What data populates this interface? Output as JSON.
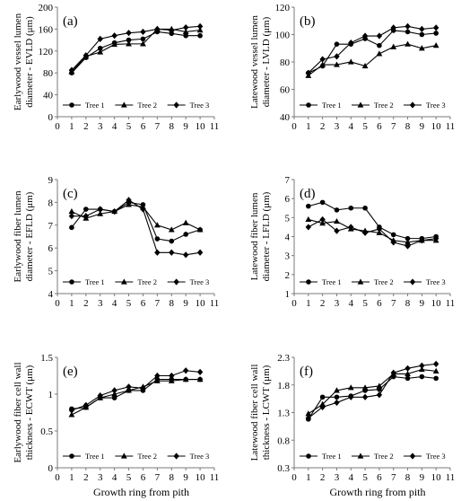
{
  "chart_data": [
    {
      "type": "line",
      "panel_label": "(a)",
      "ylabel_lines": [
        "Earlywood vessel lumen",
        "diameter - EVLD (μm)"
      ],
      "x": [
        1,
        2,
        3,
        4,
        5,
        6,
        7,
        8,
        9,
        10
      ],
      "xlim": [
        0,
        11
      ],
      "ylim": [
        0,
        200
      ],
      "yticks": [
        0,
        40,
        80,
        120,
        160,
        200
      ],
      "series": [
        {
          "name": "Tree 1",
          "marker": "circle",
          "values": [
            80,
            108,
            125,
            135,
            140,
            142,
            155,
            152,
            148,
            148
          ]
        },
        {
          "name": "Tree 2",
          "marker": "triangle",
          "values": [
            82,
            110,
            118,
            132,
            133,
            133,
            160,
            160,
            155,
            158
          ]
        },
        {
          "name": "Tree 3",
          "marker": "diamond",
          "values": [
            85,
            112,
            142,
            148,
            153,
            155,
            160,
            158,
            163,
            165
          ]
        }
      ]
    },
    {
      "type": "line",
      "panel_label": "(b)",
      "ylabel_lines": [
        "Latewood vessel lumen",
        "diameter - LVLD (μm)"
      ],
      "x": [
        1,
        2,
        3,
        4,
        5,
        6,
        7,
        8,
        9,
        10
      ],
      "xlim": [
        0,
        11
      ],
      "ylim": [
        40,
        120
      ],
      "yticks": [
        40,
        60,
        80,
        100,
        120
      ],
      "series": [
        {
          "name": "Tree 1",
          "marker": "circle",
          "values": [
            72,
            77,
            93,
            93,
            97,
            92,
            103,
            102,
            100,
            101
          ]
        },
        {
          "name": "Tree 2",
          "marker": "triangle",
          "values": [
            70,
            78,
            78,
            80,
            77,
            86,
            91,
            93,
            90,
            92
          ]
        },
        {
          "name": "Tree 3",
          "marker": "diamond",
          "values": [
            72,
            82,
            84,
            94,
            99,
            99,
            105,
            106,
            104,
            105
          ]
        }
      ]
    },
    {
      "type": "line",
      "panel_label": "(c)",
      "ylabel_lines": [
        "Earlywood fiber lumen",
        "diameter - EFLD (μm)"
      ],
      "x": [
        1,
        2,
        3,
        4,
        5,
        6,
        7,
        8,
        9,
        10
      ],
      "xlim": [
        0,
        11
      ],
      "ylim": [
        4,
        9
      ],
      "yticks": [
        4,
        5,
        6,
        7,
        8,
        9
      ],
      "series": [
        {
          "name": "Tree 1",
          "marker": "circle",
          "values": [
            6.9,
            7.7,
            7.7,
            7.6,
            8.0,
            7.9,
            6.4,
            6.3,
            6.6,
            6.8
          ]
        },
        {
          "name": "Tree 2",
          "marker": "triangle",
          "values": [
            7.6,
            7.3,
            7.5,
            7.6,
            7.9,
            7.8,
            7.0,
            6.8,
            7.1,
            6.8
          ]
        },
        {
          "name": "Tree 3",
          "marker": "diamond",
          "values": [
            7.4,
            7.4,
            7.7,
            7.6,
            8.1,
            7.7,
            5.8,
            5.8,
            5.7,
            5.8
          ]
        }
      ]
    },
    {
      "type": "line",
      "panel_label": "(d)",
      "ylabel_lines": [
        "Latewood fiber lumen",
        "diameter - LFLD (μm)"
      ],
      "x": [
        1,
        2,
        3,
        4,
        5,
        6,
        7,
        8,
        9,
        10
      ],
      "xlim": [
        0,
        11
      ],
      "ylim": [
        1,
        7
      ],
      "yticks": [
        1,
        2,
        3,
        4,
        5,
        6,
        7
      ],
      "series": [
        {
          "name": "Tree 1",
          "marker": "circle",
          "values": [
            5.6,
            5.8,
            5.4,
            5.5,
            5.5,
            4.5,
            4.1,
            3.9,
            3.9,
            4.0
          ]
        },
        {
          "name": "Tree 2",
          "marker": "triangle",
          "values": [
            4.9,
            4.7,
            4.8,
            4.4,
            4.3,
            4.2,
            3.8,
            3.7,
            3.8,
            3.8
          ]
        },
        {
          "name": "Tree 3",
          "marker": "diamond",
          "values": [
            4.5,
            4.9,
            4.3,
            4.5,
            4.2,
            4.4,
            3.7,
            3.5,
            3.8,
            3.9
          ]
        }
      ]
    },
    {
      "type": "line",
      "panel_label": "(e)",
      "ylabel_lines": [
        "Earlywood fiber cell wall",
        "thickness - ECWT (μm)"
      ],
      "x": [
        1,
        2,
        3,
        4,
        5,
        6,
        7,
        8,
        9,
        10
      ],
      "xlim": [
        0,
        11
      ],
      "ylim": [
        0,
        1.5
      ],
      "yticks": [
        0,
        0.5,
        1,
        1.5
      ],
      "ytick_labels": [
        "0",
        "0.5",
        "1",
        "1.5"
      ],
      "xlabel": "Growth ring from pith",
      "series": [
        {
          "name": "Tree 1",
          "marker": "circle",
          "values": [
            0.8,
            0.82,
            0.95,
            0.95,
            1.05,
            1.05,
            1.2,
            1.2,
            1.2,
            1.2
          ]
        },
        {
          "name": "Tree 2",
          "marker": "triangle",
          "values": [
            0.72,
            0.82,
            0.95,
            1.0,
            1.05,
            1.1,
            1.18,
            1.18,
            1.2,
            1.2
          ]
        },
        {
          "name": "Tree 3",
          "marker": "diamond",
          "values": [
            0.78,
            0.85,
            0.98,
            1.05,
            1.1,
            1.08,
            1.25,
            1.25,
            1.32,
            1.3
          ]
        }
      ]
    },
    {
      "type": "line",
      "panel_label": "(f)",
      "ylabel_lines": [
        "Latewood fiber cell wall",
        "thickness - LCWT (μm)"
      ],
      "x": [
        1,
        2,
        3,
        4,
        5,
        6,
        7,
        8,
        9,
        10
      ],
      "xlim": [
        0,
        11
      ],
      "ylim": [
        0.3,
        2.3
      ],
      "yticks": [
        0.3,
        0.8,
        1.3,
        1.8,
        2.3
      ],
      "ytick_labels": [
        "0.3",
        "0.8",
        "1.3",
        "1.8",
        "2.3"
      ],
      "xlabel": "Growth ring from pith",
      "series": [
        {
          "name": "Tree 1",
          "marker": "circle",
          "values": [
            1.18,
            1.58,
            1.58,
            1.6,
            1.7,
            1.72,
            1.95,
            1.92,
            1.95,
            1.92
          ]
        },
        {
          "name": "Tree 2",
          "marker": "triangle",
          "values": [
            1.28,
            1.45,
            1.7,
            1.75,
            1.75,
            1.78,
            2.0,
            2.0,
            2.08,
            2.05
          ]
        },
        {
          "name": "Tree 3",
          "marker": "diamond",
          "values": [
            1.2,
            1.4,
            1.48,
            1.58,
            1.58,
            1.62,
            2.02,
            2.1,
            2.15,
            2.18
          ]
        }
      ]
    }
  ]
}
